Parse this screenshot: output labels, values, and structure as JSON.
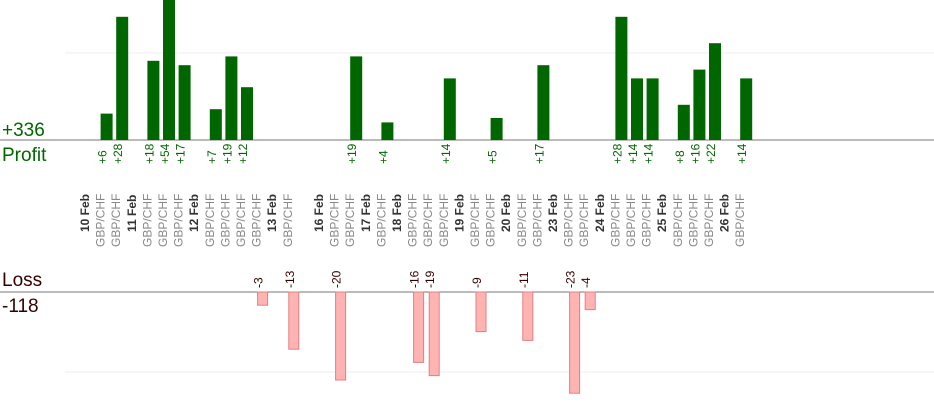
{
  "summary": {
    "profit_total": "+336",
    "profit_label": "Profit",
    "loss_label": "Loss",
    "loss_total": "-118"
  },
  "colors": {
    "profit": "#006600",
    "loss": "#ffb3b3",
    "loss_stroke": "#e08080",
    "profit_text": "#006600",
    "loss_text": "#330000",
    "pair_text": "#888888",
    "date_text": "#333333"
  },
  "chart_data": {
    "type": "bar",
    "pair": "GBP/CHF",
    "days": [
      {
        "date": "10 Feb",
        "trades": [
          6,
          28
        ]
      },
      {
        "date": "11 Feb",
        "trades": [
          18
        ]
      },
      {
        "date": "",
        "trades": [
          54,
          17
        ]
      },
      {
        "date": "12 Feb",
        "trades": [
          7,
          19,
          12
        ]
      },
      {
        "date": "",
        "trades": [
          -3
        ]
      },
      {
        "date": "13 Feb",
        "trades": [
          -13,
          null
        ]
      },
      {
        "date": "16 Feb",
        "trades": [
          -20,
          19
        ]
      },
      {
        "date": "17 Feb",
        "trades": [
          4
        ]
      },
      {
        "date": "18 Feb",
        "trades": [
          -16,
          -19,
          14
        ]
      },
      {
        "date": "19 Feb",
        "trades": [
          -9,
          5
        ]
      },
      {
        "date": "20 Feb",
        "trades": [
          -11,
          17
        ]
      },
      {
        "date": "23 Feb",
        "trades": [
          -23,
          -4
        ]
      },
      {
        "date": "24 Feb",
        "trades": [
          28,
          14,
          14
        ]
      },
      {
        "date": "25 Feb",
        "trades": [
          8,
          16,
          22
        ]
      },
      {
        "date": "26 Feb",
        "trades": [
          14
        ]
      }
    ]
  }
}
